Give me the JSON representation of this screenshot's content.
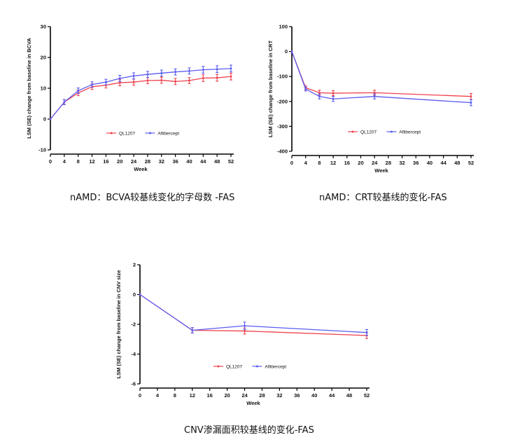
{
  "colors": {
    "ql1207": "#f0424e",
    "aflibercept": "#5a5cf2"
  },
  "chart_data": [
    {
      "type": "line",
      "xlabel": "Week",
      "ylabel": "LSM (SE) change from baseline in BCVA",
      "ylim": [
        -10,
        30
      ],
      "yticks": [
        -10,
        0,
        10,
        20,
        30
      ],
      "xticks": [
        0,
        4,
        8,
        12,
        16,
        20,
        24,
        28,
        32,
        36,
        40,
        44,
        48,
        52
      ],
      "legend": "bottom-center",
      "series": [
        {
          "name": "QL1207",
          "x": [
            0,
            4,
            8,
            12,
            16,
            20,
            24,
            28,
            32,
            36,
            40,
            44,
            48,
            52
          ],
          "y": [
            0,
            5.5,
            8.5,
            10.5,
            11,
            11.8,
            12,
            12.5,
            12.6,
            12.2,
            12.5,
            13.3,
            13.4,
            13.8
          ],
          "err": [
            0,
            0.8,
            0.9,
            0.9,
            0.9,
            1.0,
            1.0,
            1.0,
            1.0,
            1.0,
            1.0,
            1.1,
            1.1,
            1.1
          ]
        },
        {
          "name": "Aflibercept",
          "x": [
            0,
            4,
            8,
            12,
            16,
            20,
            24,
            28,
            32,
            36,
            40,
            44,
            48,
            52
          ],
          "y": [
            0,
            5.5,
            9.2,
            11.2,
            12,
            13.2,
            14,
            14.5,
            14.9,
            15.3,
            15.6,
            16,
            16.2,
            16.4
          ],
          "err": [
            0,
            0.8,
            0.9,
            0.9,
            0.9,
            1.0,
            1.0,
            1.0,
            1.0,
            1.0,
            1.0,
            1.1,
            1.1,
            1.1
          ]
        }
      ],
      "caption": "nAMD：BCVA较基线变化的字母数 -FAS"
    },
    {
      "type": "line",
      "xlabel": "Week",
      "ylabel": "LSM (SE) change from baseline in CRT",
      "ylim": [
        -400,
        100
      ],
      "yticks": [
        -400,
        -300,
        -200,
        -100,
        0,
        100
      ],
      "xticks": [
        0,
        4,
        8,
        12,
        16,
        20,
        24,
        28,
        32,
        36,
        40,
        44,
        48,
        52
      ],
      "legend": "bottom-center",
      "series": [
        {
          "name": "QL1207",
          "x": [
            0,
            4,
            8,
            12,
            24,
            52
          ],
          "y": [
            0,
            -145,
            -165,
            -167,
            -165,
            -180
          ],
          "err": [
            0,
            8,
            10,
            10,
            10,
            12
          ]
        },
        {
          "name": "Aflibercept",
          "x": [
            0,
            4,
            8,
            12,
            24,
            52
          ],
          "y": [
            0,
            -150,
            -180,
            -190,
            -180,
            -205
          ],
          "err": [
            0,
            8,
            10,
            10,
            10,
            12
          ]
        }
      ],
      "caption": "nAMD：CRT较基线的变化-FAS"
    },
    {
      "type": "line",
      "xlabel": "Week",
      "ylabel": "LSM (SE) change from baseline in CNV size",
      "ylim": [
        -6,
        2
      ],
      "yticks": [
        -6,
        -4,
        -2,
        0,
        2
      ],
      "xticks": [
        0,
        4,
        8,
        12,
        16,
        20,
        24,
        28,
        32,
        36,
        40,
        44,
        48,
        52
      ],
      "legend": "bottom-center",
      "series": [
        {
          "name": "QL1207",
          "x": [
            0,
            12,
            24,
            52
          ],
          "y": [
            0,
            -2.4,
            -2.45,
            -2.75
          ],
          "err": [
            0,
            0.18,
            0.2,
            0.2
          ]
        },
        {
          "name": "Aflibercept",
          "x": [
            0,
            12,
            24,
            52
          ],
          "y": [
            0,
            -2.4,
            -2.1,
            -2.55
          ],
          "err": [
            0,
            0.18,
            0.25,
            0.2
          ]
        }
      ],
      "caption": "CNV渗漏面积较基线的变化-FAS"
    }
  ]
}
